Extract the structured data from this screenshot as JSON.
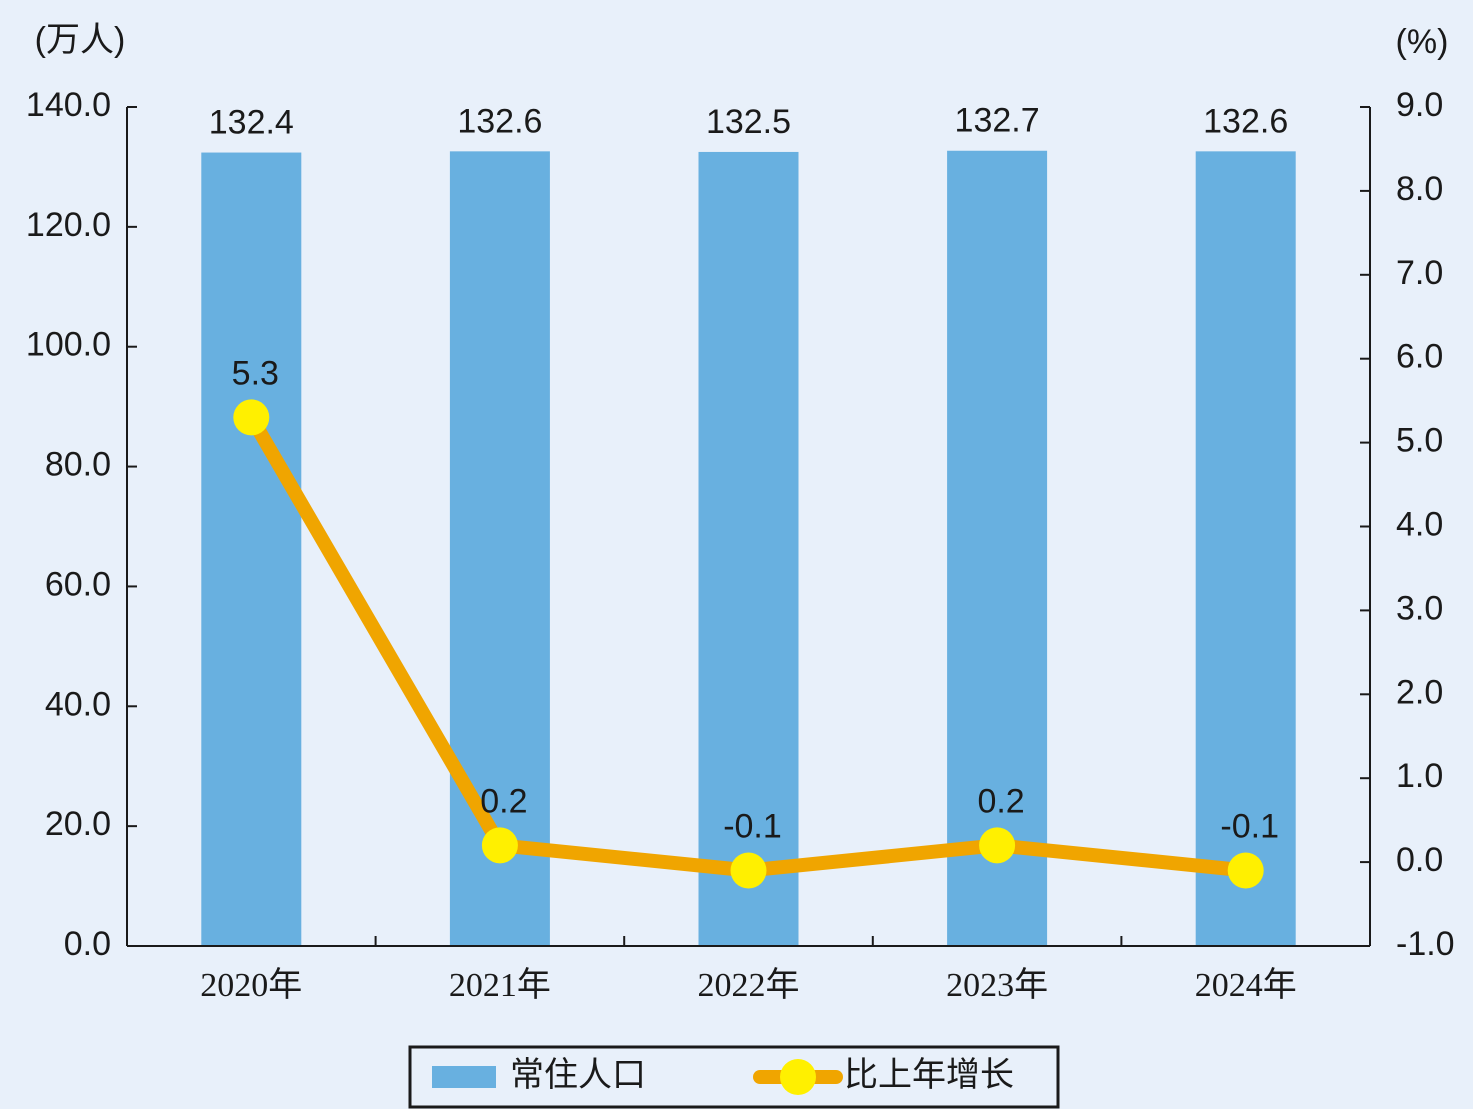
{
  "chart_data": {
    "type": "bar-line",
    "y_label": "(万人)",
    "y2_label": "(%)",
    "categories": [
      "2020年",
      "2021年",
      "2022年",
      "2023年",
      "2024年"
    ],
    "series": [
      {
        "name": "常住人口",
        "type": "bar",
        "color": "#68b0e0",
        "values": [
          132.4,
          132.6,
          132.5,
          132.7,
          132.6
        ]
      },
      {
        "name": "比上年增长",
        "type": "line",
        "axis": "y2",
        "color": "#f0a500",
        "marker_color": "#fff000",
        "values": [
          5.3,
          0.2,
          -0.1,
          0.2,
          -0.1
        ]
      }
    ],
    "ylim": [
      0,
      140
    ],
    "yticks": [
      {
        "value": 0,
        "label": "0.0"
      },
      {
        "value": 20,
        "label": "20.0"
      },
      {
        "value": 40,
        "label": "40.0"
      },
      {
        "value": 60,
        "label": "60.0"
      },
      {
        "value": 80,
        "label": "80.0"
      },
      {
        "value": 100,
        "label": "100.0"
      },
      {
        "value": 120,
        "label": "120.0"
      },
      {
        "value": 140,
        "label": "140.0"
      }
    ],
    "y2lim": [
      -1,
      9
    ],
    "y2ticks": [
      {
        "value": -1,
        "label": "-1.0"
      },
      {
        "value": 0,
        "label": "0.0"
      },
      {
        "value": 1,
        "label": "1.0"
      },
      {
        "value": 2,
        "label": "2.0"
      },
      {
        "value": 3,
        "label": "3.0"
      },
      {
        "value": 4,
        "label": "4.0"
      },
      {
        "value": 5,
        "label": "5.0"
      },
      {
        "value": 6,
        "label": "6.0"
      },
      {
        "value": 7,
        "label": "7.0"
      },
      {
        "value": 8,
        "label": "8.0"
      },
      {
        "value": 9,
        "label": "9.0"
      }
    ],
    "legend": "bottom"
  }
}
